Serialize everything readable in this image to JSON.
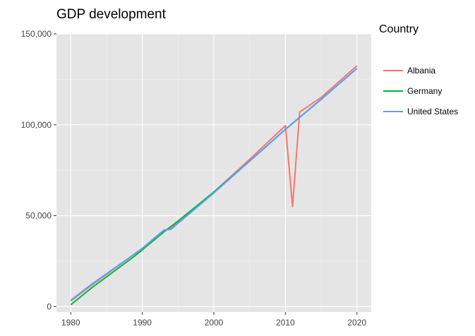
{
  "chart_data": {
    "type": "line",
    "title": "GDP development",
    "xlabel": "",
    "ylabel": "",
    "xlim": [
      1978,
      2022
    ],
    "ylim": [
      -3000,
      150000
    ],
    "xticks": [
      1980,
      1990,
      2000,
      2010,
      2020
    ],
    "yticks": [
      0,
      50000,
      100000,
      150000
    ],
    "ytick_labels": [
      "0",
      "50,000",
      "100,000",
      "150,000"
    ],
    "grid": true,
    "legend": {
      "title": "Country",
      "position": "right"
    },
    "series": [
      {
        "name": "Albania",
        "color": "#f8766d",
        "x": [
          1980,
          1983,
          1990,
          1993,
          1994,
          2000,
          2005,
          2010,
          2011,
          2012,
          2015,
          2020
        ],
        "y": [
          3000,
          12000,
          32000,
          42000,
          43000,
          63000,
          81000,
          99500,
          55000,
          107000,
          115000,
          132500
        ]
      },
      {
        "name": "Germany",
        "color": "#00ba38",
        "x": [
          1980,
          1983,
          1989,
          1993,
          1995,
          2000,
          2005,
          2010,
          2015,
          2020
        ],
        "y": [
          1000,
          10500,
          28000,
          41000,
          47000,
          63000,
          80000,
          97500,
          114000,
          131000
        ]
      },
      {
        "name": "United States",
        "color": "#619cff",
        "x": [
          1980,
          1983,
          1990,
          1993,
          1994,
          2000,
          2005,
          2010,
          2015,
          2020
        ],
        "y": [
          3500,
          12500,
          32000,
          42000,
          42500,
          62500,
          80000,
          97500,
          114000,
          131000
        ]
      }
    ]
  }
}
